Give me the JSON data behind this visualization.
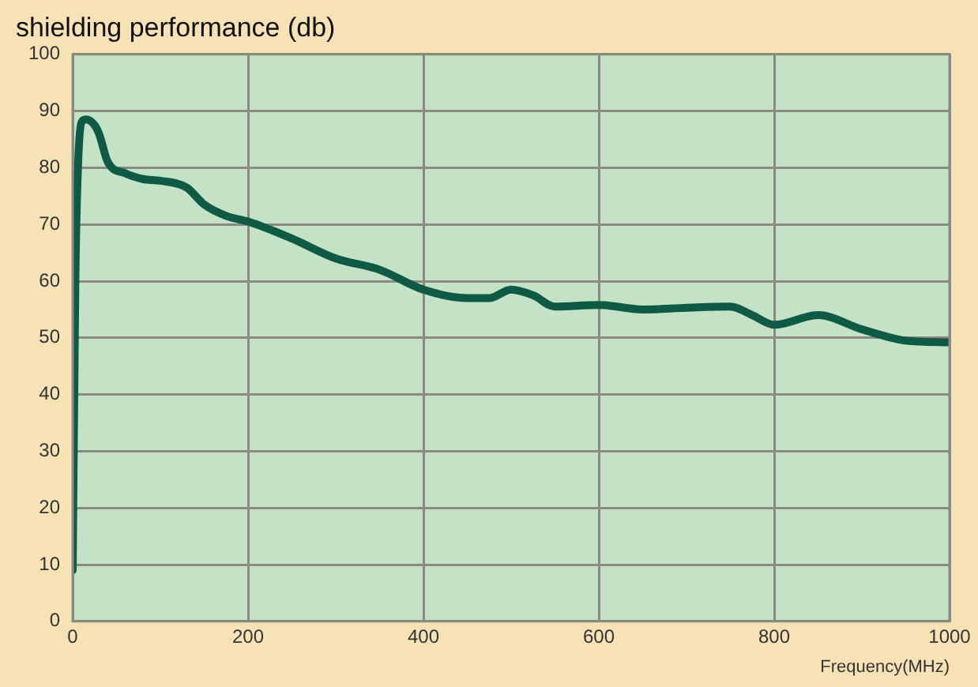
{
  "chart_data": {
    "type": "line",
    "title": "shielding performance (db)",
    "xlabel": "Frequency(MHz)",
    "x": [
      0,
      3,
      6,
      10,
      15,
      25,
      30,
      40,
      60,
      80,
      100,
      130,
      150,
      175,
      200,
      250,
      300,
      350,
      400,
      450,
      475,
      500,
      525,
      550,
      600,
      650,
      700,
      750,
      775,
      800,
      850,
      900,
      950,
      1000
    ],
    "series": [
      {
        "color": "#0f5a45",
        "values": [
          9,
          60,
          80,
          88,
          88.5,
          87.5,
          86,
          81,
          79,
          78,
          77.7,
          76.5,
          73.5,
          71.5,
          70.5,
          67.5,
          64,
          62,
          58.5,
          57,
          57,
          58.5,
          57.5,
          55.5,
          55.8,
          55,
          55.3,
          55.5,
          54,
          52.3,
          54,
          51.5,
          49.5,
          49.2
        ]
      }
    ],
    "xlim": [
      0,
      1000
    ],
    "xticks": [
      0,
      200,
      400,
      600,
      800,
      1000
    ],
    "ylim": [
      0,
      100
    ],
    "yticks": [
      0,
      10,
      20,
      30,
      40,
      50,
      60,
      70,
      80,
      90,
      100
    ],
    "grid": true,
    "legend": false,
    "marker": "none",
    "line_style": "solid"
  }
}
